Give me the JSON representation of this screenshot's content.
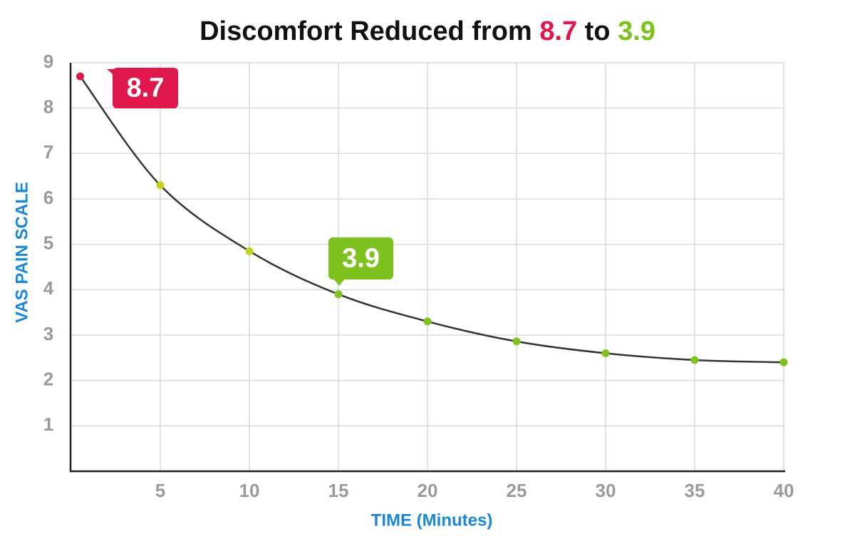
{
  "chart_data": {
    "type": "line",
    "title_lead": "Discomfort Reduced from",
    "title_from": "8.7",
    "title_mid": "to",
    "title_to": "3.9",
    "from_color": "#e0174a",
    "to_color": "#7dc21e",
    "x_label": "TIME (Minutes)",
    "y_label": "VAS PAIN SCALE",
    "x": [
      0.5,
      5,
      10,
      15,
      20,
      25,
      30,
      35,
      40
    ],
    "series": [
      {
        "color": "#333333",
        "values": [
          8.7,
          6.3,
          4.85,
          3.9,
          3.3,
          2.86,
          2.6,
          2.45,
          2.4
        ],
        "point_colors": [
          "#e0174a",
          "#c8d21a",
          "#c5d21c",
          "#7dc21e",
          "#7dc21e",
          "#7dc21e",
          "#7dc21e",
          "#7dc21e",
          "#7dc21e"
        ]
      }
    ],
    "annotations": [
      "8.7",
      "3.9"
    ],
    "xlim": [
      0,
      40
    ],
    "xticks": [
      5,
      10,
      15,
      20,
      25,
      30,
      35,
      40
    ],
    "ylim": [
      0,
      9
    ],
    "yticks": [
      1,
      2,
      3,
      4,
      5,
      6,
      7,
      8,
      9
    ],
    "grid": true
  }
}
